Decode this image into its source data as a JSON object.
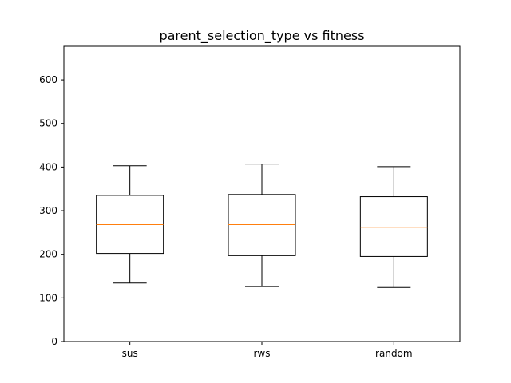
{
  "chart_data": {
    "type": "box",
    "title": "parent_selection_type vs fitness",
    "xlabel": "",
    "ylabel": "",
    "categories": [
      "sus",
      "rws",
      "random"
    ],
    "boxes": [
      {
        "name": "sus",
        "whisker_low": 134,
        "q1": 202,
        "median": 268,
        "q3": 335,
        "whisker_high": 403
      },
      {
        "name": "rws",
        "whisker_low": 126,
        "q1": 197,
        "median": 268,
        "q3": 337,
        "whisker_high": 407
      },
      {
        "name": "random",
        "whisker_low": 124,
        "q1": 195,
        "median": 262,
        "q3": 332,
        "whisker_high": 401
      }
    ],
    "ylim": [
      0,
      677
    ],
    "yticks": [
      0,
      100,
      200,
      300,
      400,
      500,
      600
    ],
    "ytick_labels": [
      "0",
      "100",
      "200",
      "300",
      "400",
      "500",
      "600"
    ],
    "grid": false,
    "colors": {
      "box": "#000000",
      "median": "#ff7f0e"
    }
  }
}
